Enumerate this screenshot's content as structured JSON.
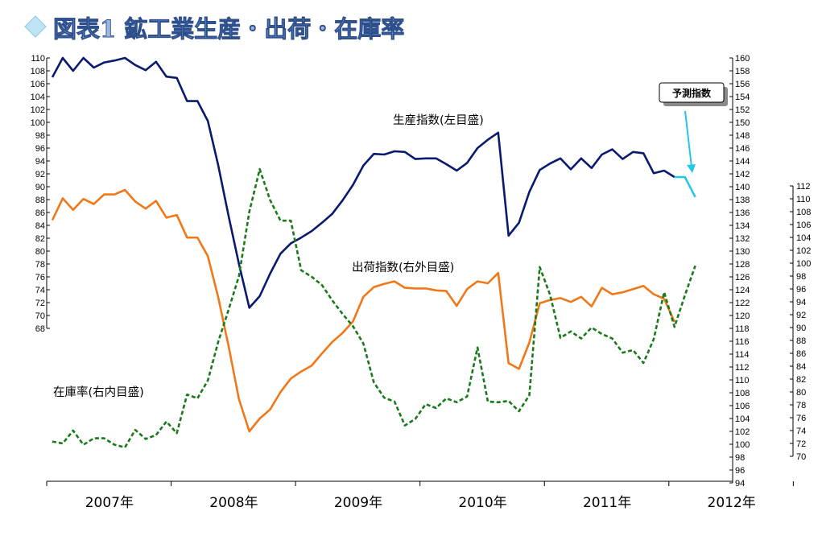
{
  "title": "図表1 鉱工業生産・出荷・在庫率",
  "chart_data": {
    "type": "line",
    "x": [
      "2007-01",
      "2007-02",
      "2007-03",
      "2007-04",
      "2007-05",
      "2007-06",
      "2007-07",
      "2007-08",
      "2007-09",
      "2007-10",
      "2007-11",
      "2007-12",
      "2008-01",
      "2008-02",
      "2008-03",
      "2008-04",
      "2008-05",
      "2008-06",
      "2008-07",
      "2008-08",
      "2008-09",
      "2008-10",
      "2008-11",
      "2008-12",
      "2009-01",
      "2009-02",
      "2009-03",
      "2009-04",
      "2009-05",
      "2009-06",
      "2009-07",
      "2009-08",
      "2009-09",
      "2009-10",
      "2009-11",
      "2009-12",
      "2010-01",
      "2010-02",
      "2010-03",
      "2010-04",
      "2010-05",
      "2010-06",
      "2010-07",
      "2010-08",
      "2010-09",
      "2010-10",
      "2010-11",
      "2010-12",
      "2011-01",
      "2011-02",
      "2011-03",
      "2011-04",
      "2011-05",
      "2011-06",
      "2011-07",
      "2011-08",
      "2011-09",
      "2011-10",
      "2011-11",
      "2011-12",
      "2012-01",
      "2012-02",
      "2012-03",
      "2012-04",
      "2012-05",
      "2012-06",
      "2012-07",
      "2012-08",
      "2012-09",
      "2012-10",
      "2012-11",
      "2012-12"
    ],
    "x_tick_labels": [
      "2007年",
      "2008年",
      "2009年",
      "2010年",
      "2011年",
      "2012年"
    ],
    "axes": {
      "left": {
        "min": 68,
        "max": 110,
        "step": 2,
        "ticks": [
          "68",
          "70",
          "72",
          "74",
          "76",
          "78",
          "80",
          "82",
          "84",
          "86",
          "88",
          "90",
          "92",
          "94",
          "96",
          "98",
          "100",
          "102",
          "104",
          "106",
          "108",
          "110"
        ]
      },
      "right_outer": {
        "min": 94,
        "max": 160,
        "step": 2,
        "ticks": [
          "94",
          "96",
          "98",
          "100",
          "102",
          "104",
          "106",
          "108",
          "110",
          "112",
          "114",
          "116",
          "118",
          "120",
          "122",
          "124",
          "126",
          "128",
          "130",
          "132",
          "134",
          "136",
          "138",
          "140",
          "142",
          "144",
          "146",
          "148",
          "150",
          "152",
          "154",
          "156",
          "158",
          "160"
        ]
      },
      "right_inner": {
        "min": 70,
        "max": 112,
        "step": 2,
        "ticks": [
          "70",
          "72",
          "74",
          "76",
          "78",
          "80",
          "82",
          "84",
          "86",
          "88",
          "90",
          "92",
          "94",
          "96",
          "98",
          "100",
          "102",
          "104",
          "106",
          "108",
          "110",
          "112"
        ]
      }
    },
    "series": [
      {
        "name": "生産指数(左目盛)",
        "axis": "left",
        "color": "#0a1a6e",
        "style": "solid",
        "values": [
          107,
          110,
          108,
          110,
          108.5,
          109.3,
          109.6,
          110,
          108.9,
          108.1,
          109.4,
          107.1,
          106.9,
          103.3,
          103.3,
          100.2,
          93.3,
          85.4,
          78,
          71.2,
          73,
          76.5,
          79.6,
          81.2,
          82.1,
          83.1,
          84.4,
          85.8,
          87.9,
          90.3,
          93.3,
          95.1,
          95,
          95.5,
          95.4,
          94.3,
          94.4,
          94.4,
          93.5,
          92.5,
          93.7,
          96,
          97.3,
          98.4,
          82.4,
          84.4,
          89.2,
          92.6,
          93.6,
          94.4,
          92.7,
          94.4,
          92.9,
          95,
          95.8,
          94.3,
          95.4,
          95.2,
          92.1,
          92.5,
          91.5,
          null,
          null,
          null,
          null,
          null,
          null,
          null,
          null,
          null,
          null,
          null
        ]
      },
      {
        "name": "予測指数",
        "axis": "left",
        "color": "#22c8e8",
        "style": "solid",
        "values": [
          null,
          null,
          null,
          null,
          null,
          null,
          null,
          null,
          null,
          null,
          null,
          null,
          null,
          null,
          null,
          null,
          null,
          null,
          null,
          null,
          null,
          null,
          null,
          null,
          null,
          null,
          null,
          null,
          null,
          null,
          null,
          null,
          null,
          null,
          null,
          null,
          null,
          null,
          null,
          null,
          null,
          null,
          null,
          null,
          null,
          null,
          null,
          null,
          null,
          null,
          null,
          null,
          null,
          null,
          null,
          null,
          null,
          null,
          null,
          null,
          91.5,
          91.5,
          88.4,
          null,
          null,
          null,
          null,
          null,
          null,
          null,
          null,
          null
        ]
      },
      {
        "name": "出荷指数(右外目盛)",
        "axis": "right_outer",
        "color": "#f07818",
        "style": "solid",
        "values": [
          134.8,
          138.2,
          136.4,
          138.1,
          137.3,
          138.8,
          138.8,
          139.5,
          137.7,
          136.6,
          137.8,
          135.2,
          135.6,
          132.1,
          132.1,
          129.2,
          122.8,
          115.2,
          107,
          102,
          104,
          105.4,
          108.1,
          110.2,
          111.3,
          112.2,
          114.1,
          115.9,
          117.3,
          119.1,
          122.9,
          124.4,
          124.9,
          125.3,
          124.3,
          124.2,
          124.2,
          123.9,
          123.8,
          121.5,
          124.1,
          125.3,
          125,
          126.6,
          112.6,
          111.7,
          115.8,
          121.9,
          122.4,
          122.7,
          122.1,
          122.9,
          121.4,
          124.3,
          123.3,
          123.6,
          124.1,
          124.6,
          123.3,
          122.6,
          119,
          null,
          null,
          null,
          null,
          null,
          null,
          null,
          null,
          null,
          null,
          null
        ]
      },
      {
        "name": "在庫率(右内目盛)",
        "axis": "right_inner",
        "color": "#1a7a1a",
        "style": "dashed",
        "values": [
          72.3,
          72,
          74,
          71.8,
          72.8,
          72.8,
          71.8,
          71.4,
          74.1,
          72.7,
          73.3,
          75.4,
          73.6,
          79.6,
          79,
          81.8,
          87.8,
          92.8,
          98,
          108,
          114.6,
          109.8,
          106.6,
          106.6,
          98.9,
          97.9,
          96.6,
          94.2,
          92.1,
          90.2,
          87.5,
          81.5,
          79.1,
          78.5,
          74.8,
          75.8,
          78.1,
          77.5,
          79,
          78.4,
          79.3,
          86.9,
          78.5,
          78.4,
          78.6,
          77,
          79.5,
          99.4,
          95.1,
          88.4,
          89.4,
          88.3,
          90,
          89,
          88.3,
          86.1,
          86.5,
          84.5,
          88.2,
          95.5,
          90.1,
          95,
          99.6,
          null,
          null,
          null,
          null,
          null,
          null,
          null,
          null,
          null
        ]
      }
    ],
    "annotations": [
      {
        "text": "生産指数(左目盛)"
      },
      {
        "text": "出荷指数(右外目盛)"
      },
      {
        "text": "在庫率(右内目盛)"
      },
      {
        "text": "予測指数",
        "boxed": true
      }
    ],
    "grid": false
  }
}
